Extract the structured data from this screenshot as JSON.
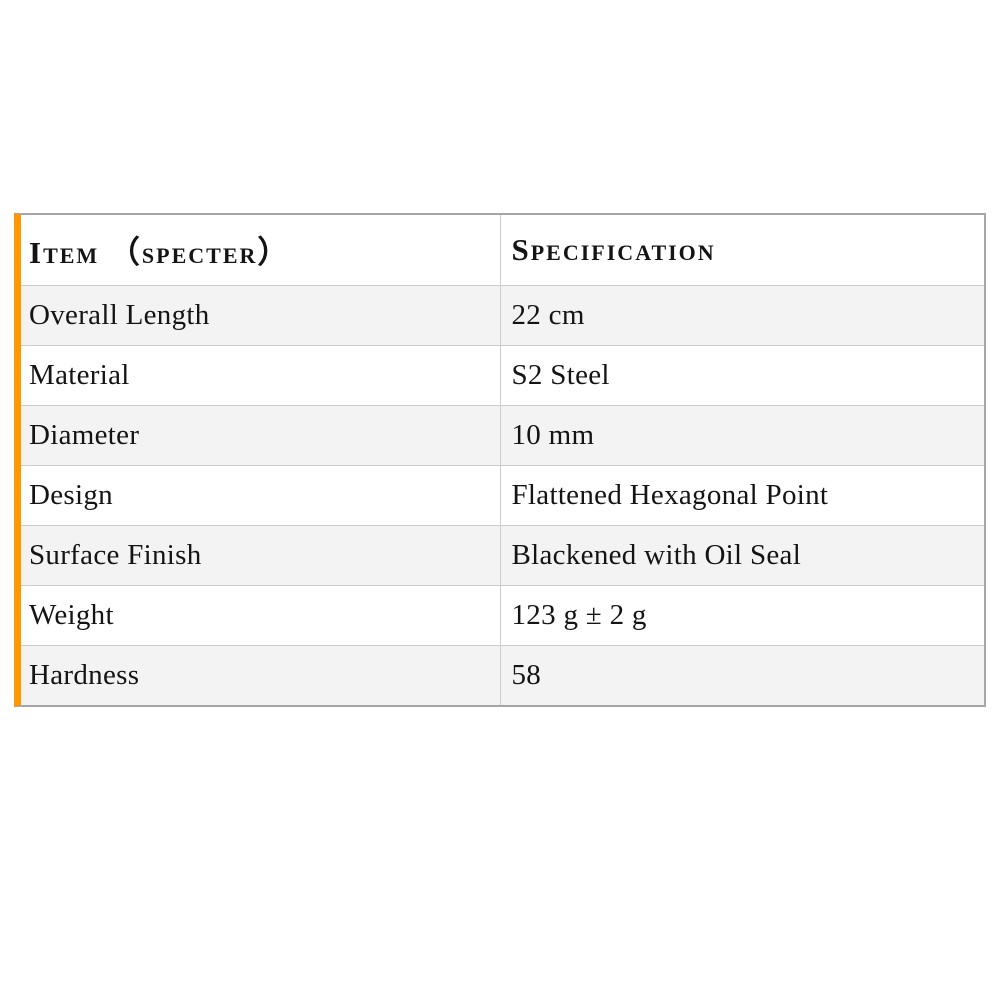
{
  "colors": {
    "accent": "#FF9800",
    "row-alt": "#f3f3f3",
    "row-main": "#ffffff",
    "border-outer": "#a6a6a6",
    "border-inner": "#cccccc",
    "text": "#141414"
  },
  "table": {
    "columns": [
      {
        "label": "Item （specter）"
      },
      {
        "label": "Specification"
      }
    ],
    "rows": [
      {
        "item": "Overall Length",
        "spec": "22 cm"
      },
      {
        "item": "Material",
        "spec": "S2 Steel"
      },
      {
        "item": "Diameter",
        "spec": "10 mm"
      },
      {
        "item": "Design",
        "spec": "Flattened Hexagonal Point"
      },
      {
        "item": "Surface Finish",
        "spec": "Blackened with Oil Seal"
      },
      {
        "item": "Weight",
        "spec": "123 g ± 2 g"
      },
      {
        "item": "Hardness",
        "spec": "58"
      }
    ]
  }
}
